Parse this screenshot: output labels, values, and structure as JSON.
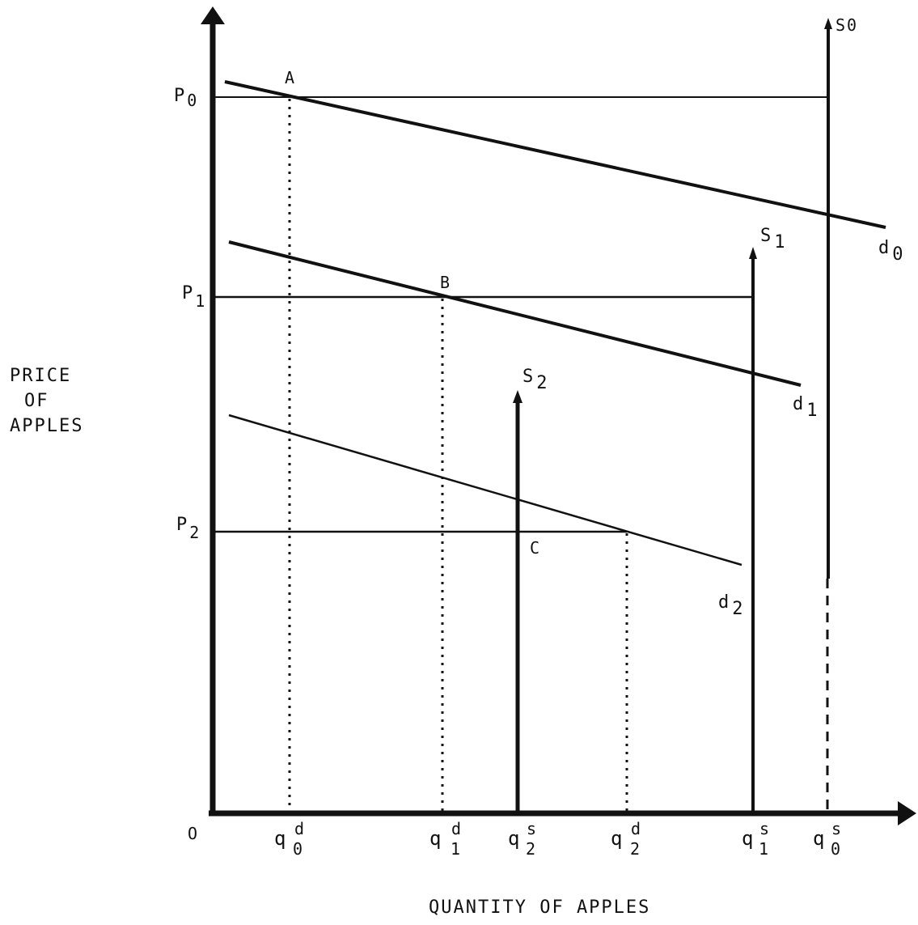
{
  "axes": {
    "y_title_lines": [
      "PRICE",
      "OF",
      "APPLES"
    ],
    "x_title": "QUANTITY OF APPLES",
    "origin_label": "O"
  },
  "price_labels": {
    "p0": {
      "base": "P",
      "sub": "0"
    },
    "p1": {
      "base": "P",
      "sub": "1"
    },
    "p2": {
      "base": "P",
      "sub": "2"
    }
  },
  "quantity_labels": {
    "q0d": {
      "base": "q",
      "sub": "0",
      "sup": "d"
    },
    "q1d": {
      "base": "q",
      "sub": "1",
      "sup": "d"
    },
    "q2s": {
      "base": "q",
      "sub": "2",
      "sup": "s"
    },
    "q2d": {
      "base": "q",
      "sub": "2",
      "sup": "d"
    },
    "q1s": {
      "base": "q",
      "sub": "1",
      "sup": "s"
    },
    "q0s": {
      "base": "q",
      "sub": "0",
      "sup": "s"
    }
  },
  "curve_labels": {
    "s0": {
      "base": "S",
      "sub": "0"
    },
    "s1": {
      "base": "S",
      "sub": "1"
    },
    "s2": {
      "base": "S",
      "sub": "2"
    },
    "d0": {
      "base": "d",
      "sub": "0"
    },
    "d1": {
      "base": "d",
      "sub": "1"
    },
    "d2": {
      "base": "d",
      "sub": "2"
    }
  },
  "point_labels": {
    "a": "A",
    "b": "B",
    "c": "C"
  }
}
